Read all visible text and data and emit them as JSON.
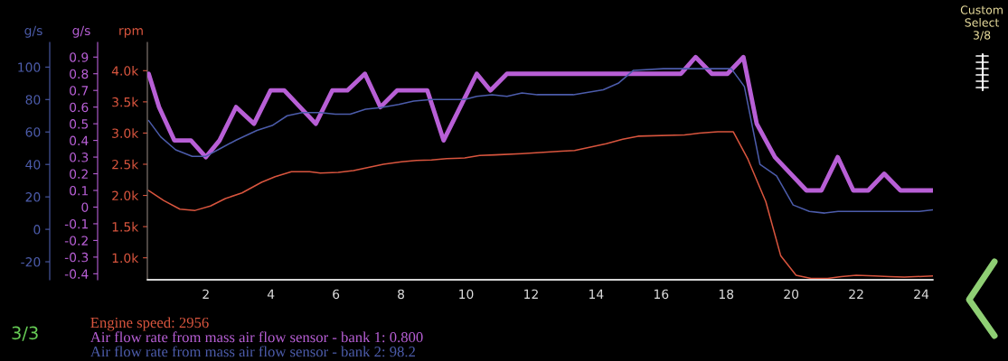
{
  "chart_data": {
    "type": "line",
    "ylabel": "rpm",
    "y2label": "g/s",
    "y3label": "g/s",
    "xlim": [
      0.2,
      24.36
    ],
    "xticks": [
      2,
      4,
      6,
      8,
      10,
      12,
      14,
      16,
      18,
      20,
      22,
      24
    ],
    "ylim": [
      648,
      4453
    ],
    "yticks": [
      {
        "value": 1000,
        "label": "1.0k"
      },
      {
        "value": 1500,
        "label": "1.5k"
      },
      {
        "value": 2000,
        "label": "2.0k"
      },
      {
        "value": 2500,
        "label": "2.5k"
      },
      {
        "value": 3000,
        "label": "3.0k"
      },
      {
        "value": 3500,
        "label": "3.5k"
      },
      {
        "value": 4000,
        "label": "4.0k"
      }
    ],
    "y2lim": [
      -0.436,
      0.988
    ],
    "y2ticks": [
      -0.4,
      -0.3,
      -0.2,
      -0.1,
      0,
      0.1,
      0.2,
      0.3,
      0.4,
      0.5,
      0.6,
      0.7,
      0.8,
      0.9
    ],
    "y3lim": [
      -31.1,
      115.2
    ],
    "y3ticks": [
      -20,
      0,
      20,
      40,
      60,
      80,
      100
    ],
    "grid": false,
    "legend": "bottom left",
    "marker": "none",
    "line_style": "solid",
    "annotations": [
      "3/3",
      "Custom\nSelect\n3/8"
    ],
    "series": [
      {
        "name": "Engine speed: 2956",
        "color": "#d9553e",
        "axis": "y",
        "x": [
          0.24,
          0.7,
          1.2,
          1.67,
          2.14,
          2.6,
          3.11,
          3.71,
          4.13,
          4.63,
          5.19,
          5.52,
          6.07,
          6.54,
          7.0,
          7.46,
          8.02,
          8.48,
          8.94,
          9.41,
          9.96,
          10.42,
          10.89,
          11.72,
          12.93,
          13.34,
          14.31,
          14.82,
          15.29,
          16.72,
          17.18,
          17.74,
          18.22,
          18.67,
          19.22,
          19.68,
          20.15,
          20.61,
          21.12,
          21.54,
          22.0,
          22.56,
          23.02,
          23.48,
          24.36
        ],
        "values": [
          2080,
          1920,
          1780,
          1760,
          1830,
          1950,
          2040,
          2210,
          2300,
          2380,
          2380,
          2360,
          2370,
          2400,
          2450,
          2500,
          2540,
          2560,
          2570,
          2590,
          2600,
          2640,
          2650,
          2670,
          2710,
          2720,
          2830,
          2900,
          2950,
          2970,
          3000,
          3020,
          3020,
          2580,
          1900,
          1030,
          720,
          670,
          670,
          700,
          720,
          710,
          700,
          690,
          710
        ]
      },
      {
        "name": "Air flow rate from mass air flow sensor - bank 1: 0.800",
        "color": "#b85fd6",
        "axis": "y2",
        "x": [
          0.24,
          0.56,
          1.03,
          1.54,
          2.0,
          2.42,
          2.93,
          3.48,
          3.99,
          4.41,
          5.38,
          5.89,
          6.35,
          6.89,
          7.37,
          7.88,
          8.81,
          9.31,
          10.33,
          10.75,
          11.26,
          16.61,
          17.06,
          17.56,
          18.04,
          18.53,
          18.94,
          19.5,
          20.47,
          20.93,
          21.43,
          21.91,
          22.37,
          22.86,
          23.36,
          24.36
        ],
        "values": [
          0.8,
          0.6,
          0.4,
          0.4,
          0.3,
          0.4,
          0.6,
          0.5,
          0.7,
          0.7,
          0.5,
          0.7,
          0.7,
          0.8,
          0.6,
          0.7,
          0.7,
          0.4,
          0.8,
          0.7,
          0.8,
          0.8,
          0.9,
          0.8,
          0.8,
          0.9,
          0.5,
          0.3,
          0.1,
          0.1,
          0.3,
          0.1,
          0.1,
          0.2,
          0.1,
          0.1
        ]
      },
      {
        "name": "Air flow rate from mass air flow sensor - bank 2: 98.2",
        "color": "#4c5cab",
        "axis": "y3",
        "x": [
          0.24,
          0.61,
          1.07,
          1.58,
          2.0,
          2.46,
          2.93,
          3.57,
          4.04,
          4.5,
          4.96,
          5.52,
          5.98,
          6.44,
          6.91,
          7.37,
          7.93,
          8.39,
          8.94,
          9.5,
          9.96,
          10.33,
          10.8,
          11.26,
          11.72,
          12.19,
          13.3,
          14.22,
          14.68,
          15.15,
          16.07,
          18.04,
          18.16,
          18.56,
          19.04,
          19.55,
          20.06,
          20.56,
          21.03,
          21.44,
          22.56,
          23.48,
          23.94,
          24.36
        ],
        "values": [
          67,
          57,
          49,
          45,
          45,
          50,
          55,
          61,
          64,
          70,
          72,
          72,
          71,
          71,
          74,
          75,
          77,
          79,
          80,
          80,
          80,
          82,
          83,
          82,
          84,
          83,
          83,
          86,
          90,
          98,
          99,
          99,
          99,
          88,
          40,
          33,
          15,
          11,
          10,
          11,
          11,
          11,
          11,
          12
        ]
      }
    ]
  }
}
